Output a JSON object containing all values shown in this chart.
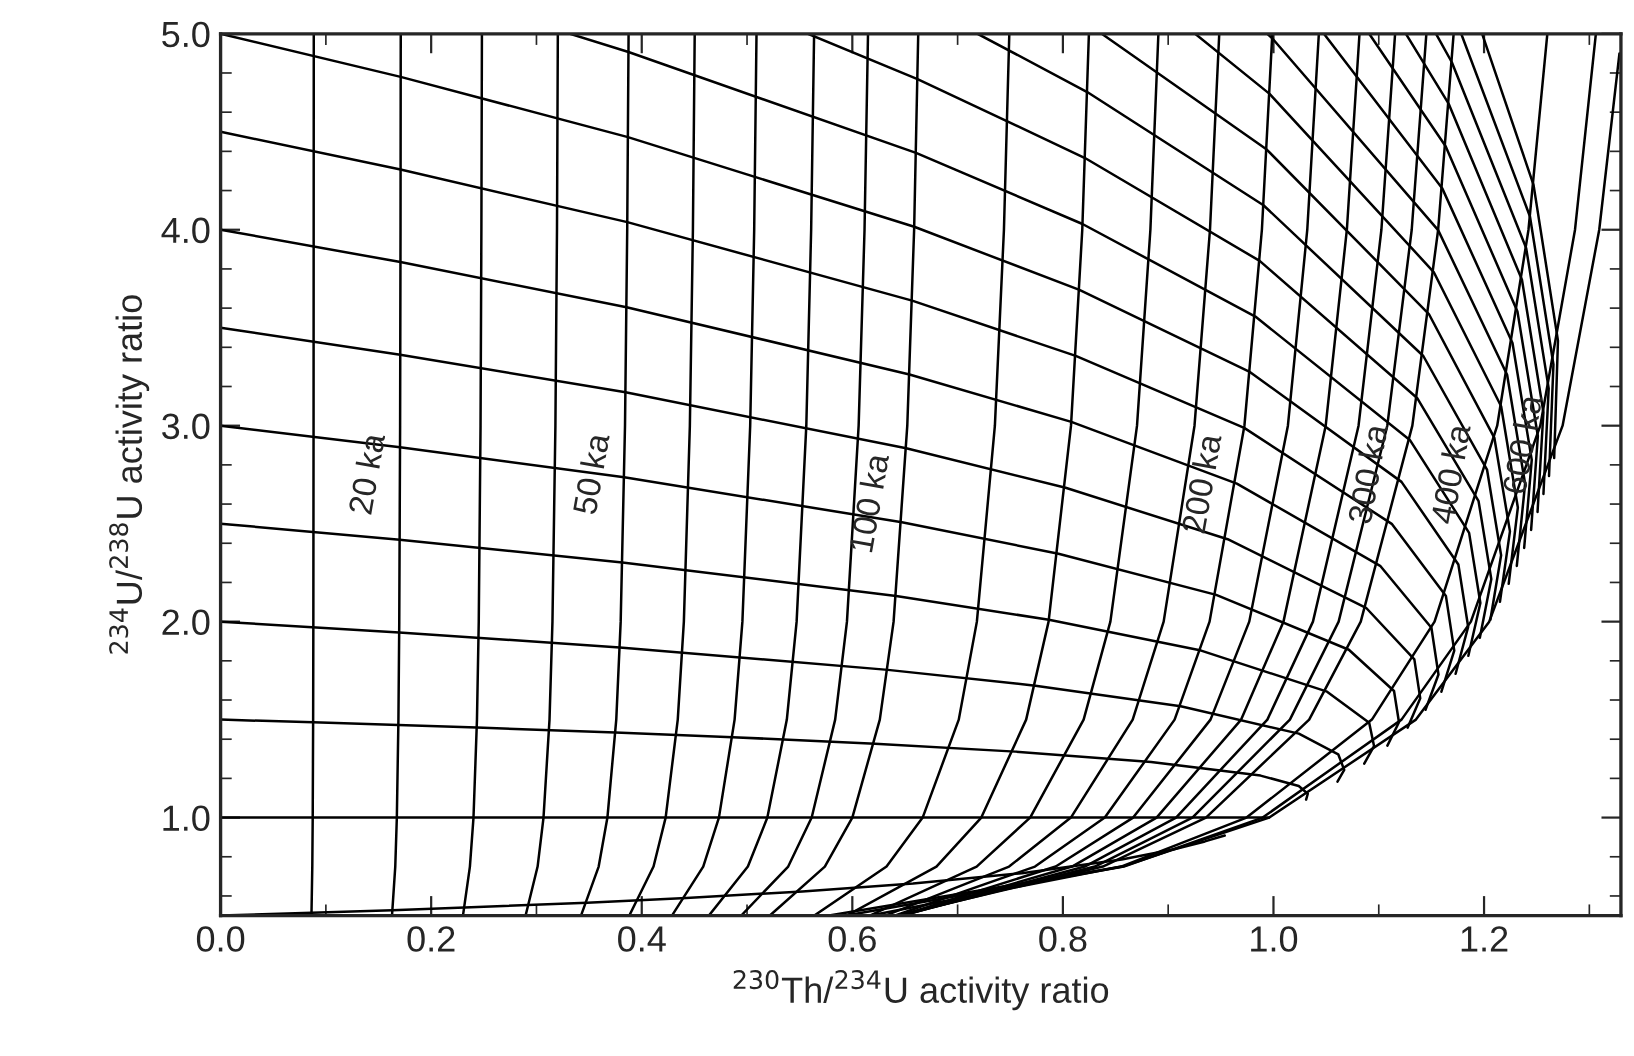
{
  "chart_data": {
    "type": "line",
    "xlabel": "$^{230}$Th/$^{234}$U activity ratio",
    "ylabel": "$^{234}$U/$^{238}$U activity ratio",
    "xlim": [
      0,
      1.33
    ],
    "ylim": [
      0.5,
      5.0
    ],
    "xticks": [
      {
        "value": 0,
        "label": "0.0"
      },
      {
        "value": 0.2,
        "label": "0.2"
      },
      {
        "value": 0.4,
        "label": "0.4"
      },
      {
        "value": 0.6,
        "label": "0.6"
      },
      {
        "value": 0.8,
        "label": "0.8"
      },
      {
        "value": 1.0,
        "label": "1.0"
      },
      {
        "value": 1.2,
        "label": "1.2"
      }
    ],
    "yticks": [
      {
        "value": 1.0,
        "label": "1.0"
      },
      {
        "value": 2.0,
        "label": "2.0"
      },
      {
        "value": 3.0,
        "label": "3.0"
      },
      {
        "value": 4.0,
        "label": "4.0"
      },
      {
        "value": 5.0,
        "label": "5.0"
      }
    ],
    "grid": false,
    "marker": "none",
    "line_style": "solid",
    "series": [
      {
        "color": "#000000",
        "x": [
          0.0863,
          0.0871,
          0.0875,
          0.0879,
          0.0881,
          0.0883,
          0.0884,
          0.0885
        ],
        "values": [
          0.5,
          0.75,
          1,
          1.5,
          2,
          3,
          4,
          5
        ]
      },
      {
        "color": "#000000",
        "x": [
          0.1628,
          0.1659,
          0.1674,
          0.1689,
          0.1697,
          0.1705,
          0.1709,
          0.1711
        ],
        "values": [
          0.5,
          0.75,
          1,
          1.5,
          2,
          3,
          4,
          5
        ]
      },
      {
        "color": "#000000",
        "x": [
          0.2302,
          0.2368,
          0.2402,
          0.2435,
          0.2452,
          0.2469,
          0.2477,
          0.2482
        ],
        "values": [
          0.5,
          0.75,
          1,
          1.5,
          2,
          3,
          4,
          5
        ]
      },
      {
        "color": "#000000",
        "x": [
          0.2897,
          0.3011,
          0.3067,
          0.3124,
          0.3152,
          0.318,
          0.3195,
          0.3203
        ],
        "values": [
          0.5,
          0.75,
          1,
          1.5,
          2,
          3,
          4,
          5
        ]
      },
      {
        "color": "#000000",
        "x": [
          0.3423,
          0.3591,
          0.3674,
          0.3758,
          0.38,
          0.3841,
          0.3862,
          0.3875
        ],
        "values": [
          0.5,
          0.75,
          1,
          1.5,
          2,
          3,
          4,
          5
        ]
      },
      {
        "color": "#000000",
        "x": [
          0.3882,
          0.4112,
          0.4227,
          0.4342,
          0.44,
          0.4457,
          0.4486,
          0.4503
        ],
        "values": [
          0.5,
          0.75,
          1,
          1.5,
          2,
          3,
          4,
          5
        ]
      },
      {
        "color": "#000000",
        "x": [
          0.4287,
          0.4584,
          0.4733,
          0.4882,
          0.4956,
          0.503,
          0.5068,
          0.509
        ],
        "values": [
          0.5,
          0.75,
          1,
          1.5,
          2,
          3,
          4,
          5
        ]
      },
      {
        "color": "#000000",
        "x": [
          0.4638,
          0.5008,
          0.5193,
          0.5378,
          0.5471,
          0.5563,
          0.5609,
          0.5637
        ],
        "values": [
          0.5,
          0.75,
          1,
          1.5,
          2,
          3,
          4,
          5
        ]
      },
      {
        "color": "#000000",
        "x": [
          0.4945,
          0.5391,
          0.5614,
          0.5837,
          0.5949,
          0.606,
          0.6116,
          0.6149
        ],
        "values": [
          0.5,
          0.75,
          1,
          1.5,
          2,
          3,
          4,
          5
        ]
      },
      {
        "color": "#000000",
        "x": [
          0.5217,
          0.5739,
          0.6,
          0.6261,
          0.6392,
          0.6522,
          0.6587,
          0.6626
        ],
        "values": [
          0.5,
          0.75,
          1,
          1.5,
          2,
          3,
          4,
          5
        ]
      },
      {
        "color": "#000000",
        "x": [
          0.5639,
          0.6325,
          0.6668,
          0.7011,
          0.7183,
          0.7354,
          0.744,
          0.7491
        ],
        "values": [
          0.5,
          0.75,
          1,
          1.5,
          2,
          3,
          4,
          5
        ]
      },
      {
        "color": "#000000",
        "x": [
          0.5947,
          0.6799,
          0.7225,
          0.7651,
          0.7864,
          0.8077,
          0.8184,
          0.8247
        ],
        "values": [
          0.5,
          0.75,
          1,
          1.5,
          2,
          3,
          4,
          5
        ]
      },
      {
        "color": "#000000",
        "x": [
          0.6166,
          0.7181,
          0.7689,
          0.8197,
          0.8451,
          0.8704,
          0.8831,
          0.8907
        ],
        "values": [
          0.5,
          0.75,
          1,
          1.5,
          2,
          3,
          4,
          5
        ]
      },
      {
        "color": "#000000",
        "x": [
          0.6315,
          0.7489,
          0.8076,
          0.8663,
          0.8957,
          0.925,
          0.9397,
          0.9485
        ],
        "values": [
          0.5,
          0.75,
          1,
          1.5,
          2,
          3,
          4,
          5
        ]
      },
      {
        "color": "#000000",
        "x": [
          0.6409,
          0.7735,
          0.8398,
          0.9061,
          0.9393,
          0.9724,
          0.989,
          0.9989
        ],
        "values": [
          0.5,
          0.75,
          1,
          1.5,
          2,
          3,
          4,
          5
        ]
      },
      {
        "color": "#000000",
        "x": [
          0.6462,
          0.7932,
          0.8667,
          0.9402,
          0.977,
          1.0137,
          1.0321,
          1.0431
        ],
        "values": [
          0.5,
          0.75,
          1,
          1.5,
          2,
          3,
          4,
          5
        ]
      },
      {
        "color": "#000000",
        "x": [
          0.6481,
          0.8087,
          0.889,
          0.9693,
          1.0095,
          1.0496,
          1.0697,
          1.0817
        ],
        "values": [
          0.5,
          0.75,
          1,
          1.5,
          2,
          3,
          4,
          5
        ]
      },
      {
        "color": "#000000",
        "x": [
          0.6475,
          0.8208,
          0.9075,
          0.9942,
          1.0375,
          1.0808,
          1.1025,
          1.1155
        ],
        "values": [
          0.5,
          0.75,
          1,
          1.5,
          2,
          3,
          4,
          5
        ]
      },
      {
        "color": "#000000",
        "x": [
          0.6453,
          0.8304,
          0.923,
          1.0156,
          1.0619,
          1.1081,
          1.1313,
          1.1452
        ],
        "values": [
          0.5,
          0.75,
          1,
          1.5,
          2,
          3,
          4,
          5
        ]
      },
      {
        "color": "#000000",
        "x": [
          0.6419,
          0.8379,
          0.9359,
          1.0339,
          1.0829,
          1.1319,
          1.1564,
          1.1711
        ],
        "values": [
          0.5,
          0.75,
          1,
          1.5,
          2,
          3,
          4,
          5
        ]
      },
      {
        "color": "#000000",
        "x": [
          0.6173,
          0.8553,
          0.9744,
          1.0935,
          1.153,
          1.2125,
          1.2422,
          1.2601
        ],
        "values": [
          0.5,
          0.75,
          1,
          1.5,
          2,
          3,
          4,
          5
        ]
      },
      {
        "color": "#000000",
        "x": [
          0.5941,
          0.8579,
          0.9897,
          1.1216,
          1.1875,
          1.2534,
          1.2864,
          1.3062
        ],
        "values": [
          0.5,
          0.75,
          1,
          1.5,
          2,
          3,
          4,
          5
        ]
      },
      {
        "color": "#000000",
        "x": [
          0.5779,
          0.8565,
          0.9959,
          1.1353,
          1.2049,
          1.2746,
          1.3094,
          1.3286
        ],
        "values": [
          0.5,
          0.75,
          1,
          1.5,
          2,
          3,
          4,
          4.9
        ]
      },
      {
        "color": "#000000",
        "x": [
          0,
          0.0864,
          0.1632,
          0.2318,
          0.3481,
          0.4423,
          0.5526,
          0.6577,
          0.7609,
          0.8558,
          0.9057,
          0.9349,
          0.9537
        ],
        "values": [
          0.5,
          0.5139,
          0.5275,
          0.5406,
          0.5659,
          0.5897,
          0.6231,
          0.6634,
          0.7159,
          0.7858,
          0.8385,
          0.8783,
          0.9082
        ]
      },
      {
        "color": "#000000",
        "x": [
          0,
          0.0875,
          0.1674,
          0.2402,
          0.3674,
          0.4733,
          0.6,
          0.7225,
          0.8398,
          0.9359,
          0.9744,
          0.9897,
          0.9959
        ],
        "values": [
          1,
          1,
          1,
          1,
          1,
          1,
          1,
          1,
          1,
          1,
          1,
          1,
          1
        ]
      },
      {
        "color": "#000000",
        "x": [
          0,
          0.0879,
          0.1689,
          0.2433,
          0.375,
          0.4863,
          0.6215,
          0.7547,
          0.8838,
          0.9877,
          1.024,
          1.0326,
          1.031
        ],
        "values": [
          1.5,
          1.4861,
          1.4725,
          1.4594,
          1.4341,
          1.4103,
          1.3769,
          1.3366,
          1.2841,
          1.2142,
          1.1615,
          1.1217,
          1.0918
        ]
      },
      {
        "color": "#000000",
        "x": [
          0,
          0.1696,
          0.3791,
          0.6337,
          0.7739,
          0.9119,
          1.0241,
          1.0615,
          1.0672,
          1.0608
        ],
        "values": [
          2,
          1.945,
          1.8682,
          1.7538,
          1.6732,
          1.5682,
          1.4283,
          1.3229,
          1.2434,
          1.1835
        ]
      },
      {
        "color": "#000000",
        "x": [
          0,
          0.1701,
          0.3816,
          0.6416,
          0.7867,
          0.9313,
          1.0509,
          1.0909,
          1.0955,
          1.0862
        ],
        "values": [
          2.5,
          2.4175,
          2.3023,
          2.1307,
          2.0098,
          1.8523,
          1.6425,
          1.4844,
          1.3651,
          1.2753
        ]
      },
      {
        "color": "#000000",
        "x": [
          0,
          0.1704,
          0.3833,
          0.6471,
          0.7958,
          0.9456,
          1.0716,
          1.1145,
          1.1192,
          1.1082
        ],
        "values": [
          3,
          2.89,
          2.7364,
          2.5076,
          2.3464,
          2.1364,
          1.8566,
          1.6458,
          1.4868,
          1.367
        ]
      },
      {
        "color": "#000000",
        "x": [
          0,
          0.1706,
          0.3846,
          0.6512,
          0.8026,
          0.9565,
          1.0879,
          1.1338,
          1.1394,
          1.1274
        ],
        "values": [
          3.5,
          3.3625,
          3.1705,
          2.8845,
          2.683,
          2.4205,
          2.0708,
          1.8073,
          1.6085,
          1.4588
        ]
      },
      {
        "color": "#000000",
        "x": [
          0,
          0.1708,
          0.3856,
          0.6543,
          0.808,
          0.9652,
          1.1013,
          1.15,
          1.1567,
          1.1444
        ],
        "values": [
          4,
          3.835,
          3.6046,
          3.2614,
          3.0196,
          2.7046,
          2.2849,
          1.9687,
          1.7302,
          1.5505
        ]
      },
      {
        "color": "#000000",
        "x": [
          0,
          0.1709,
          0.3863,
          0.6568,
          0.8122,
          0.9722,
          1.1123,
          1.1638,
          1.1717,
          1.1595
        ],
        "values": [
          4.5,
          4.3075,
          4.0387,
          3.6383,
          3.3562,
          2.9887,
          2.4991,
          2.1302,
          1.8519,
          1.6423
        ]
      },
      {
        "color": "#000000",
        "x": [
          0,
          0.171,
          0.3869,
          0.6588,
          0.8157,
          0.9779,
          1.1216,
          1.1756,
          1.1849,
          1.173
        ],
        "values": [
          5,
          4.78,
          4.4728,
          4.0152,
          3.6928,
          3.2728,
          2.7132,
          2.2916,
          1.9736,
          1.734
        ]
      },
      {
        "color": "#000000",
        "x": [
          0.3319,
          0.3874,
          0.6605,
          0.8186,
          0.9828,
          1.1295,
          1.1858,
          1.1965,
          1.1851
        ],
        "values": [
          5,
          4.9069,
          4.3921,
          4.0294,
          3.5569,
          2.9274,
          2.4531,
          2.0953,
          1.8258
        ]
      },
      {
        "color": "#000000",
        "x": [
          0.5579,
          0.6619,
          0.821,
          0.9869,
          1.1364,
          1.1948,
          1.2069,
          1.196
        ],
        "values": [
          5,
          4.769,
          4.366,
          3.841,
          3.1415,
          2.6145,
          2.217,
          1.9175
        ]
      },
      {
        "color": "#000000",
        "x": [
          0.719,
          0.8231,
          0.9905,
          1.1423,
          1.2028,
          1.2162,
          1.206
        ],
        "values": [
          5,
          4.7026,
          4.1251,
          3.3557,
          2.776,
          2.3387,
          2.0093
        ]
      },
      {
        "color": "#000000",
        "x": [
          0.8369,
          0.9936,
          1.1476,
          1.2098,
          1.2246,
          1.2151
        ],
        "values": [
          5,
          4.4092,
          3.5698,
          2.9374,
          2.4604,
          2.101
        ]
      },
      {
        "color": "#000000",
        "x": [
          0.9256,
          0.9963,
          1.1522,
          1.2162,
          1.2321,
          1.2234
        ],
        "values": [
          5,
          4.6933,
          3.784,
          3.0989,
          2.5821,
          2.1928
        ]
      },
      {
        "color": "#000000",
        "x": [
          0.9942,
          0.9988,
          1.1564,
          1.2219,
          1.239,
          1.2311
        ],
        "values": [
          5,
          4.9774,
          3.9981,
          3.2603,
          2.7038,
          2.2845
        ]
      },
      {
        "color": "#000000",
        "x": [
          1.0479,
          1.1602,
          1.227,
          1.2453,
          1.2381
        ],
        "values": [
          5,
          4.2123,
          3.4218,
          2.8255,
          2.3763
        ]
      },
      {
        "color": "#000000",
        "x": [
          1.0909,
          1.1635,
          1.2317,
          1.2511,
          1.2447
        ],
        "values": [
          5,
          4.4264,
          3.5832,
          2.9472,
          2.468
        ]
      },
      {
        "color": "#000000",
        "x": [
          1.1258,
          1.1666,
          1.236,
          1.2564,
          1.2508
        ],
        "values": [
          5,
          4.6406,
          3.7447,
          3.0689,
          2.5598
        ]
      },
      {
        "color": "#000000",
        "x": [
          1.1544,
          1.1694,
          1.24,
          1.2614,
          1.2564
        ],
        "values": [
          5,
          4.8547,
          3.9061,
          3.1906,
          2.6515
        ]
      },
      {
        "color": "#000000",
        "x": [
          1.1783,
          1.2436,
          1.2659,
          1.2617
        ],
        "values": [
          5,
          4.0676,
          3.3123,
          2.7433
        ]
      },
      {
        "color": "#000000",
        "x": [
          1.1982,
          1.247,
          1.2702,
          1.2666
        ],
        "values": [
          5,
          4.229,
          3.434,
          2.835
        ]
      }
    ],
    "annotations": [
      {
        "text": "20 ka",
        "x": 0.1706,
        "y": 2.75
      },
      {
        "text": "50 ka",
        "x": 0.3838,
        "y": 2.75
      },
      {
        "text": "100 ka",
        "x": 0.6492,
        "y": 2.6
      },
      {
        "text": "200 ka",
        "x": 0.965,
        "y": 2.7
      },
      {
        "text": "300 ka",
        "x": 1.123,
        "y": 2.75
      },
      {
        "text": "400 ka",
        "x": 1.2016,
        "y": 2.75
      },
      {
        "text": "600 ka",
        "x": 1.2697,
        "y": 2.9
      }
    ]
  }
}
